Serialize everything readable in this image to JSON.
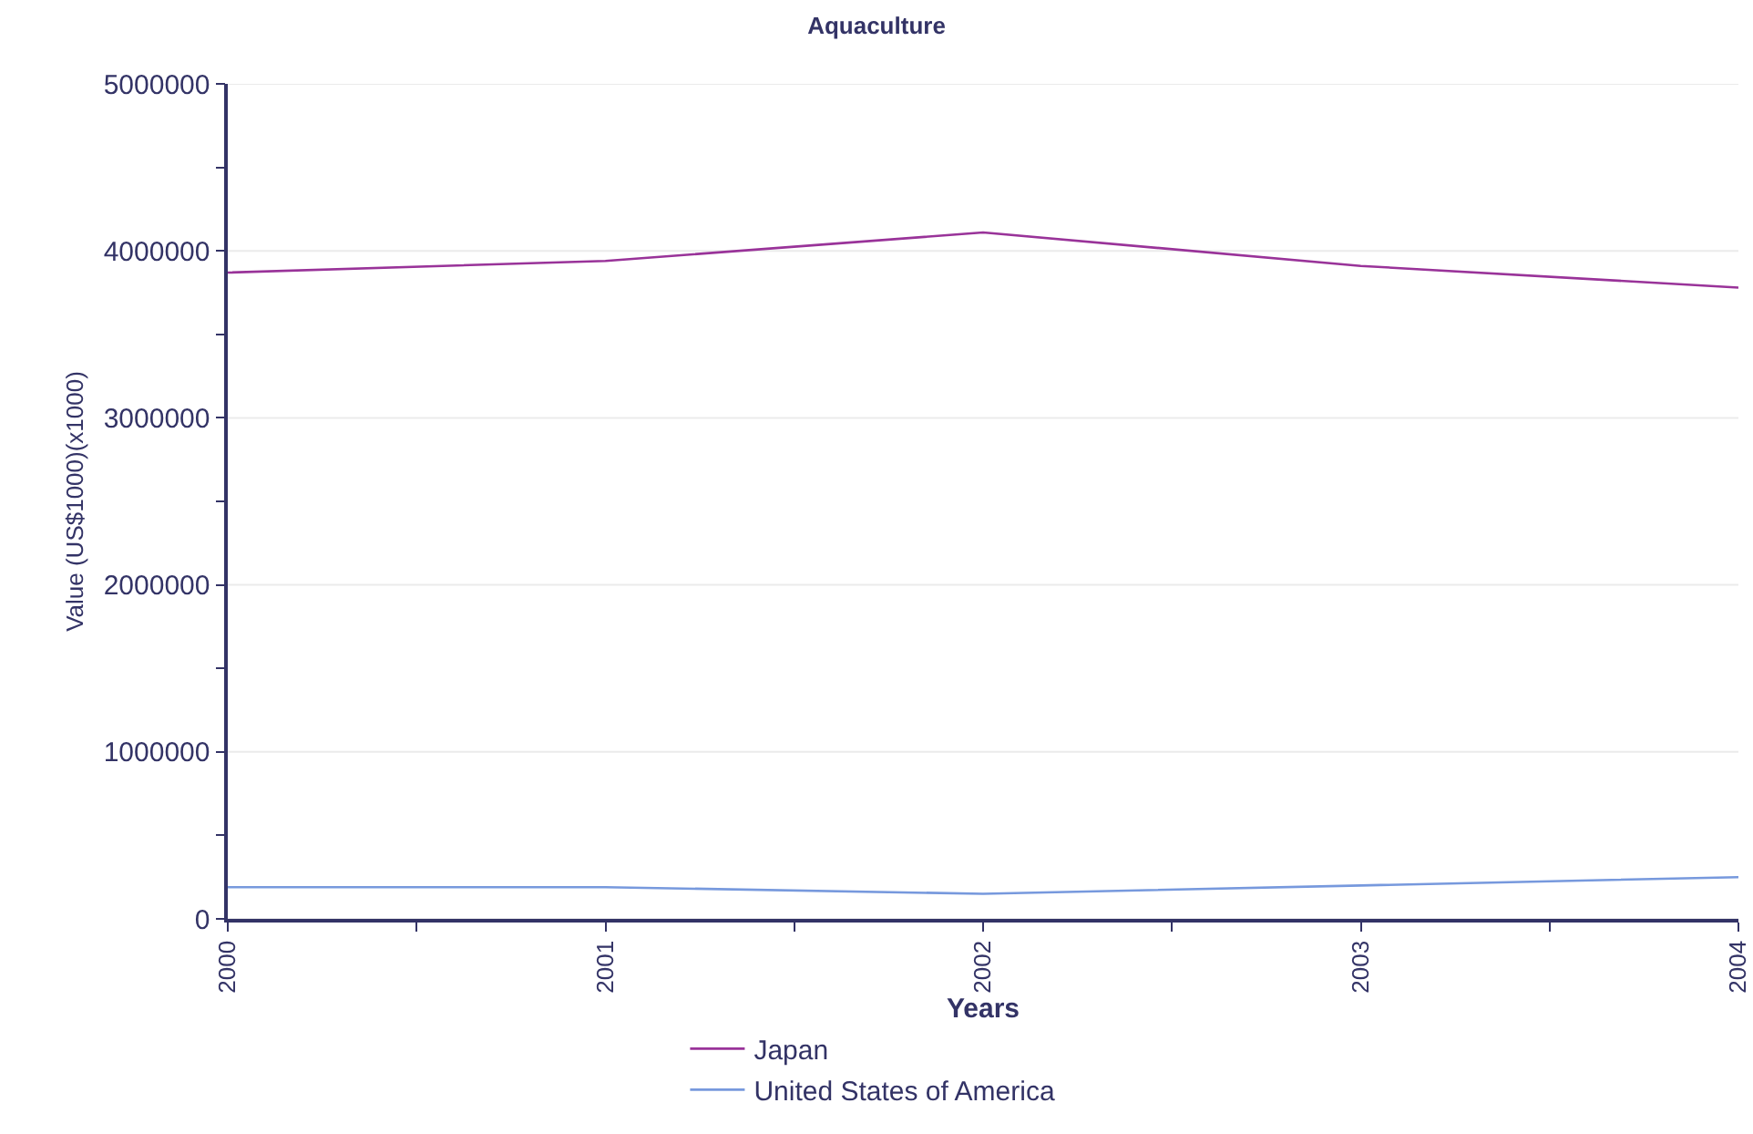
{
  "chart_data": {
    "type": "line",
    "title": "Aquaculture",
    "xlabel": "Years",
    "ylabel": "Value (US$1000)(x1000)",
    "x": [
      2000,
      2001,
      2002,
      2003,
      2004
    ],
    "series": [
      {
        "name": "Japan",
        "color": "#993399",
        "values": [
          3870000,
          3940000,
          4110000,
          3910000,
          3780000
        ]
      },
      {
        "name": "United States of America",
        "color": "#7799dd",
        "values": [
          190000,
          190000,
          150000,
          200000,
          250000
        ]
      }
    ],
    "xlim": [
      2000,
      2004
    ],
    "xticks": [
      2000,
      {
        "value": 2000.5,
        "label": null
      },
      2001,
      {
        "value": 2001.5,
        "label": null
      },
      2002,
      {
        "value": 2002.5,
        "label": null
      },
      2003,
      {
        "value": 2003.5,
        "label": null
      },
      2004
    ],
    "ylim": [
      0,
      5000000
    ],
    "yticks": [
      0,
      {
        "value": 500000,
        "label": null
      },
      1000000,
      {
        "value": 1500000,
        "label": null
      },
      2000000,
      {
        "value": 2500000,
        "label": null
      },
      3000000,
      {
        "value": 3500000,
        "label": null
      },
      4000000,
      {
        "value": 4500000,
        "label": null
      },
      5000000
    ],
    "grid": "y",
    "legend": "bottom",
    "marker": "none",
    "line_style": "solid"
  }
}
